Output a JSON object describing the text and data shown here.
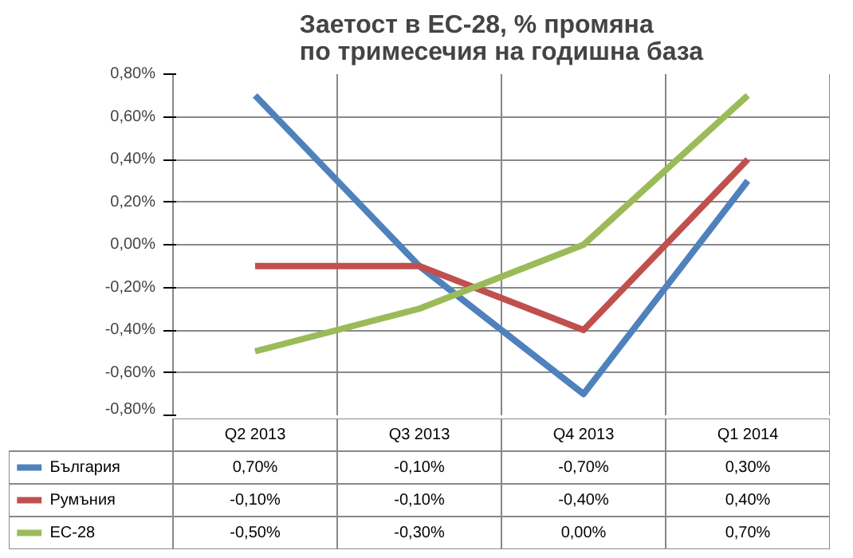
{
  "chart_data": {
    "type": "line",
    "title": "Заетост в ЕС-28, % промяна по тримесечия на годишна база",
    "categories": [
      "Q2 2013",
      "Q3 2013",
      "Q4 2013",
      "Q1 2014"
    ],
    "series": [
      {
        "name": "България",
        "color": "#4f81bd",
        "values": [
          0.7,
          -0.1,
          -0.7,
          0.3
        ],
        "value_labels": [
          "0,70%",
          "-0,10%",
          "-0,70%",
          "0,30%"
        ]
      },
      {
        "name": "Румъния",
        "color": "#c0504d",
        "values": [
          -0.1,
          -0.1,
          -0.4,
          0.4
        ],
        "value_labels": [
          "-0,10%",
          "-0,10%",
          "-0,40%",
          "0,40%"
        ]
      },
      {
        "name": "ЕС-28",
        "color": "#9bbb59",
        "values": [
          -0.5,
          -0.3,
          0.0,
          0.7
        ],
        "value_labels": [
          "-0,50%",
          "-0,30%",
          "0,00%",
          "0,70%"
        ]
      }
    ],
    "ylim": [
      -0.8,
      0.8
    ],
    "yticks": [
      {
        "value": -0.8,
        "label": "-0,80%"
      },
      {
        "value": -0.6,
        "label": "-0,60%"
      },
      {
        "value": -0.4,
        "label": "-0,40%"
      },
      {
        "value": -0.2,
        "label": "-0,20%"
      },
      {
        "value": 0,
        "label": "0,00%"
      },
      {
        "value": 0.2,
        "label": "0,20%"
      },
      {
        "value": 0.4,
        "label": "0,40%"
      },
      {
        "value": 0.6,
        "label": "0,60%"
      },
      {
        "value": 0.8,
        "label": "0,80%"
      }
    ],
    "grid": true,
    "legend": "bottom",
    "marker": "none",
    "line_style": "solid"
  }
}
